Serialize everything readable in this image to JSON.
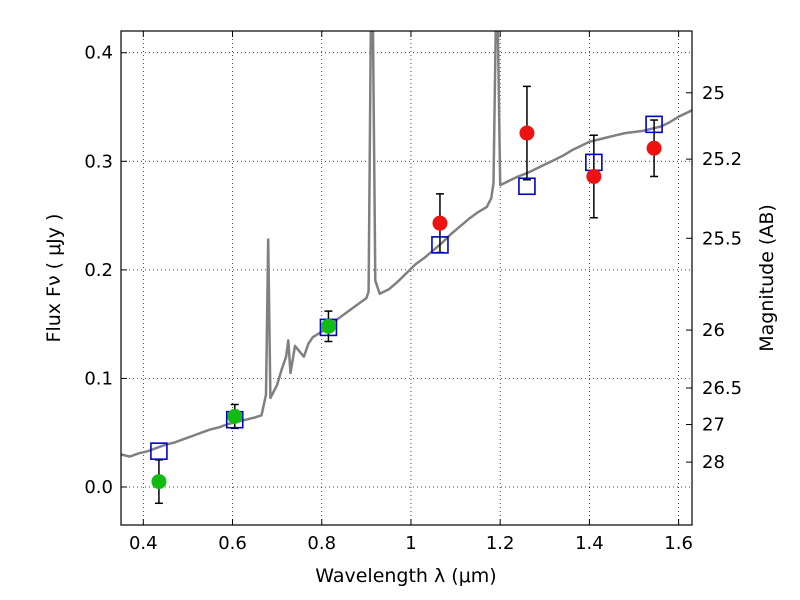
{
  "chart_data": {
    "type": "scatter",
    "xlabel": "Wavelength  λ (μm)",
    "ylabel": "Flux  Fν  ( μJy )",
    "y2label": "Magnitude (AB)",
    "xlim": [
      0.35,
      1.63
    ],
    "ylim": [
      -0.035,
      0.42
    ],
    "x_ticks": [
      0.4,
      0.6,
      0.8,
      1.0,
      1.2,
      1.4,
      1.6
    ],
    "x_tick_labels": [
      "0.4",
      "0.6",
      "0.8",
      "1",
      "1.2",
      "1.4",
      "1.6"
    ],
    "y_ticks": [
      0.0,
      0.1,
      0.2,
      0.3,
      0.4
    ],
    "y_tick_labels": [
      "0.0",
      "0.1",
      "0.2",
      "0.3",
      "0.4"
    ],
    "mag_ticks": [
      {
        "label": "25",
        "mag": 25.0
      },
      {
        "label": "25.2",
        "mag": 25.2
      },
      {
        "label": "25.5",
        "mag": 25.5
      },
      {
        "label": "26",
        "mag": 26.0
      },
      {
        "label": "26.5",
        "mag": 26.5
      },
      {
        "label": "27",
        "mag": 27.0
      },
      {
        "label": "28",
        "mag": 28.0
      }
    ],
    "grid": true,
    "colors": {
      "spectrum": "#808080",
      "green": "#11bb11",
      "red": "#ee1111",
      "model": "#0000cc",
      "errorbar": "#000000"
    },
    "spectrum": [
      [
        0.35,
        0.03
      ],
      [
        0.37,
        0.028
      ],
      [
        0.39,
        0.031
      ],
      [
        0.41,
        0.033
      ],
      [
        0.43,
        0.036
      ],
      [
        0.45,
        0.039
      ],
      [
        0.47,
        0.041
      ],
      [
        0.49,
        0.044
      ],
      [
        0.51,
        0.047
      ],
      [
        0.53,
        0.05
      ],
      [
        0.55,
        0.053
      ],
      [
        0.57,
        0.055
      ],
      [
        0.59,
        0.058
      ],
      [
        0.61,
        0.06
      ],
      [
        0.63,
        0.062
      ],
      [
        0.65,
        0.064
      ],
      [
        0.665,
        0.066
      ],
      [
        0.675,
        0.085
      ],
      [
        0.68,
        0.228
      ],
      [
        0.685,
        0.082
      ],
      [
        0.7,
        0.094
      ],
      [
        0.71,
        0.108
      ],
      [
        0.72,
        0.12
      ],
      [
        0.725,
        0.135
      ],
      [
        0.73,
        0.105
      ],
      [
        0.74,
        0.13
      ],
      [
        0.75,
        0.125
      ],
      [
        0.76,
        0.12
      ],
      [
        0.77,
        0.132
      ],
      [
        0.78,
        0.138
      ],
      [
        0.8,
        0.143
      ],
      [
        0.82,
        0.15
      ],
      [
        0.84,
        0.156
      ],
      [
        0.86,
        0.162
      ],
      [
        0.88,
        0.168
      ],
      [
        0.9,
        0.174
      ],
      [
        0.905,
        0.18
      ],
      [
        0.91,
        0.42
      ],
      [
        0.915,
        0.42
      ],
      [
        0.92,
        0.19
      ],
      [
        0.93,
        0.178
      ],
      [
        0.95,
        0.182
      ],
      [
        0.97,
        0.189
      ],
      [
        0.99,
        0.197
      ],
      [
        1.01,
        0.205
      ],
      [
        1.03,
        0.211
      ],
      [
        1.05,
        0.218
      ],
      [
        1.07,
        0.225
      ],
      [
        1.09,
        0.233
      ],
      [
        1.11,
        0.24
      ],
      [
        1.13,
        0.247
      ],
      [
        1.15,
        0.253
      ],
      [
        1.17,
        0.258
      ],
      [
        1.18,
        0.266
      ],
      [
        1.185,
        0.28
      ],
      [
        1.19,
        0.42
      ],
      [
        1.195,
        0.42
      ],
      [
        1.2,
        0.278
      ],
      [
        1.22,
        0.282
      ],
      [
        1.24,
        0.286
      ],
      [
        1.26,
        0.289
      ],
      [
        1.28,
        0.293
      ],
      [
        1.3,
        0.297
      ],
      [
        1.32,
        0.301
      ],
      [
        1.34,
        0.305
      ],
      [
        1.36,
        0.31
      ],
      [
        1.38,
        0.314
      ],
      [
        1.4,
        0.318
      ],
      [
        1.42,
        0.32
      ],
      [
        1.44,
        0.322
      ],
      [
        1.46,
        0.324
      ],
      [
        1.48,
        0.326
      ],
      [
        1.5,
        0.327
      ],
      [
        1.52,
        0.328
      ],
      [
        1.54,
        0.33
      ],
      [
        1.56,
        0.332
      ],
      [
        1.58,
        0.336
      ],
      [
        1.6,
        0.341
      ],
      [
        1.63,
        0.347
      ]
    ],
    "photometry": [
      {
        "x": 0.435,
        "y": 0.005,
        "yerr": 0.02,
        "color": "green"
      },
      {
        "x": 0.605,
        "y": 0.065,
        "yerr": 0.011,
        "color": "green"
      },
      {
        "x": 0.815,
        "y": 0.148,
        "yerr": 0.014,
        "color": "green"
      },
      {
        "x": 1.065,
        "y": 0.243,
        "yerr": 0.027,
        "color": "red"
      },
      {
        "x": 1.26,
        "y": 0.326,
        "yerr": 0.043,
        "color": "red"
      },
      {
        "x": 1.41,
        "y": 0.286,
        "yerr": 0.038,
        "color": "red"
      },
      {
        "x": 1.545,
        "y": 0.312,
        "yerr": 0.026,
        "color": "red"
      }
    ],
    "model_points": [
      {
        "x": 0.435,
        "y": 0.033
      },
      {
        "x": 0.605,
        "y": 0.062
      },
      {
        "x": 0.815,
        "y": 0.147
      },
      {
        "x": 1.065,
        "y": 0.223
      },
      {
        "x": 1.26,
        "y": 0.277
      },
      {
        "x": 1.41,
        "y": 0.299
      },
      {
        "x": 1.545,
        "y": 0.334
      }
    ]
  }
}
